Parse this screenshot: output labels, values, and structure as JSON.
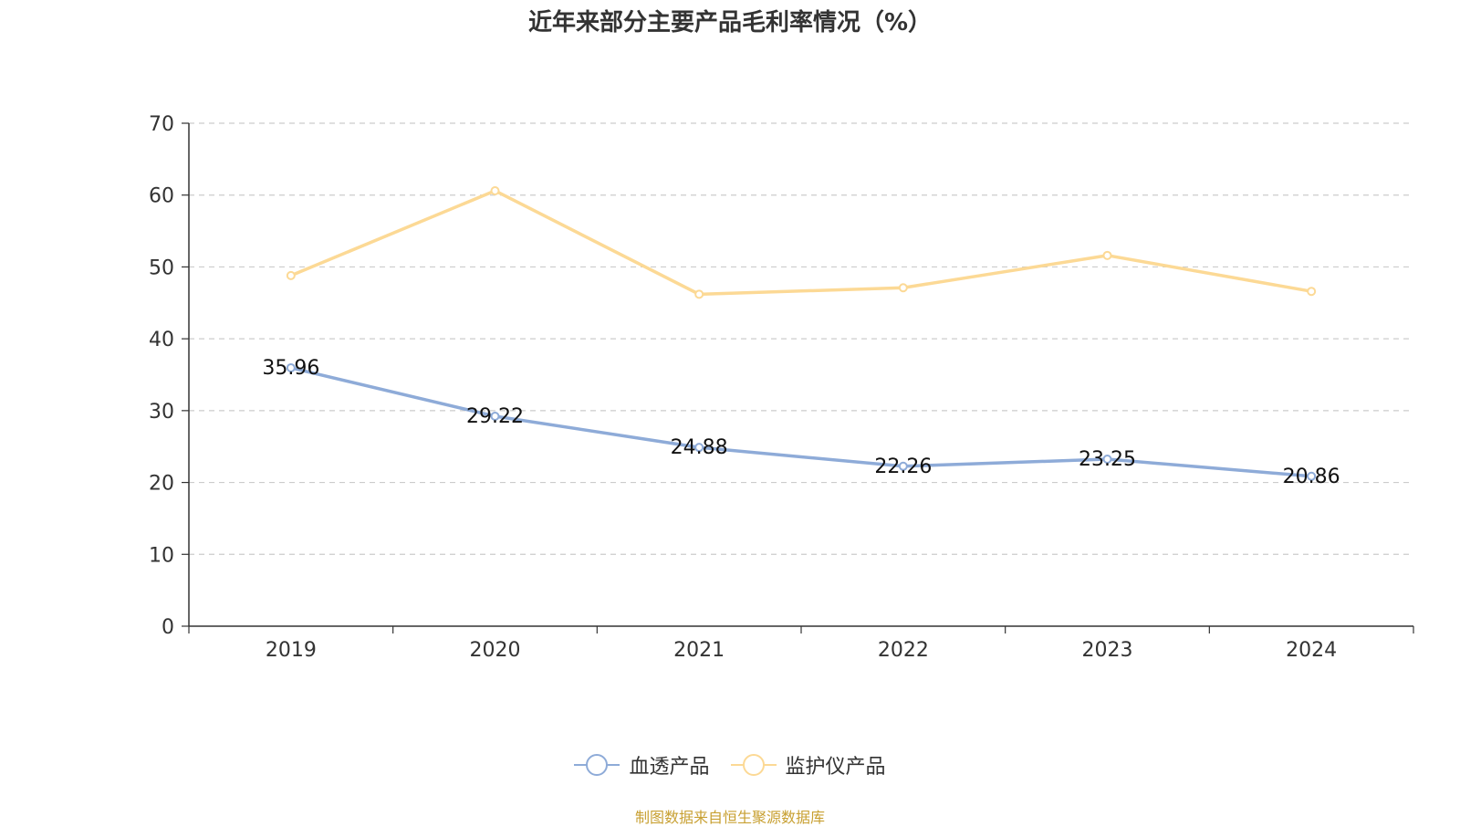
{
  "title": "近年来部分主要产品毛利率情况（%）",
  "source": "制图数据来自恒生聚源数据库",
  "chart_data": {
    "type": "line",
    "categories": [
      "2019",
      "2020",
      "2021",
      "2022",
      "2023",
      "2024"
    ],
    "ylim": [
      0,
      70
    ],
    "yticks": [
      0,
      10,
      20,
      30,
      40,
      50,
      60,
      70
    ],
    "grid": true,
    "legend_position": "bottom",
    "series": [
      {
        "name": "血透产品",
        "color": "#8eabd8",
        "values": [
          35.96,
          29.22,
          24.88,
          22.26,
          23.25,
          20.86
        ],
        "labels": [
          "35.96",
          "29.22",
          "24.88",
          "22.26",
          "23.25",
          "20.86"
        ]
      },
      {
        "name": "监护仪产品",
        "color": "#fcd995",
        "values": [
          48.8,
          60.6,
          46.2,
          47.1,
          51.6,
          46.6
        ]
      }
    ]
  }
}
